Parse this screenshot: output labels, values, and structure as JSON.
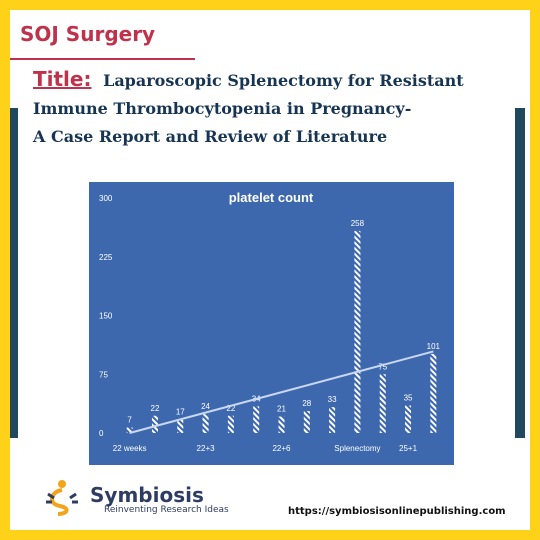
{
  "header": {
    "journal": "SOJ Surgery",
    "title_word": "Title:",
    "title_lines": [
      "Laparoscopic Splenectomy for Resistant",
      "Immune Thrombocytopenia in Pregnancy-",
      "A Case Report and Review of Literature"
    ]
  },
  "footer": {
    "brand": "Symbiosis",
    "tagline": "Reinventing Research Ideas",
    "url": "https://symbiosisonlinepublishing.com"
  },
  "colors": {
    "frame": "#FFD21A",
    "chart_bg": "#3E68AE",
    "bar": "#FFFFFF",
    "trendline": "#C9D7F1"
  },
  "chart_data": {
    "type": "bar",
    "title": "platelet count",
    "values": [
      7,
      22,
      17,
      24,
      22,
      34,
      21,
      28,
      33,
      258,
      75,
      35,
      101
    ],
    "x_tick_labels": [
      {
        "index": 0,
        "label": "22 weeks"
      },
      {
        "index": 3,
        "label": "22+3"
      },
      {
        "index": 6,
        "label": "22+6"
      },
      {
        "index": 9,
        "label": "Splenectomy"
      },
      {
        "index": 11,
        "label": "25+1"
      }
    ],
    "y_ticks": [
      0,
      75,
      150,
      225,
      300
    ],
    "ylim": [
      0,
      300
    ],
    "trendline": "linear",
    "grid": false,
    "legend": "none"
  }
}
